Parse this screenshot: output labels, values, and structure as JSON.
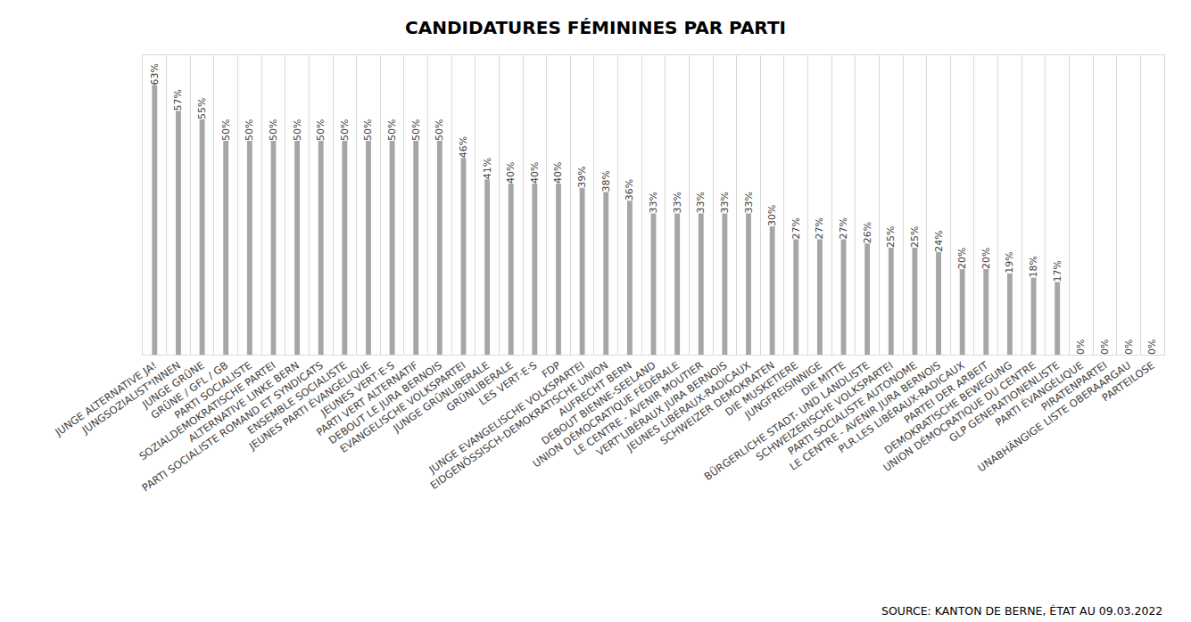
{
  "chart_data": {
    "type": "bar",
    "title": "CANDIDATURES FÉMININES PAR PARTI",
    "annotation": "SOURCE: KANTON DE BERNE, ÉTAT AU 09.03.2022",
    "categories": [
      "JUNGE ALTERNATIVE JA!",
      "JUNGSOZIALIST*INNEN",
      "JUNGE GRÜNE",
      "GRÜNE / GFL / GB",
      "PARTI SOCIALISTE",
      "SOZIALDEMOKRATISCHE PARTEI",
      "ALTERNATIVE LINKE BERN",
      "PARTI SOCIALISTE ROMAND ET SYNDICATS",
      "ENSEMBLE SOCIALISTE",
      "JEUNES PARTI ÉVANGÉLIQUE",
      "JEUNES VERT·E·S",
      "PARTI VERT ALTERNATIF",
      "DEBOUT LE JURA BERNOIS",
      "EVANGELISCHE VOLKSPARTEI",
      "JUNGE GRÜNLIBERALE",
      "GRÜNLIBERALE",
      "LES VERT·E·S",
      "FDP",
      "JUNGE EVANGELISCHE VOLKSPARTEI",
      "EIDGENÖSSISCH-DEMOKRATISCHE UNION",
      "AUFRECHT BERN",
      "DEBOUT BIENNE-SEELAND",
      "UNION DÉMOCRATIQUE FÉDÉRALE",
      "LE CENTRE - AVENIR MOUTIER",
      "VERT'LIBÉRAUX JURA BERNOIS",
      "JEUNES LIBÉRAUX-RADICAUX",
      "SCHWEIZER DEMOKRATEN",
      "DIE MUSKETIERE",
      "JUNGFREISINNIGE",
      "DIE MITTE",
      "BÜRGERLICHE STADT- UND LANDLISTE",
      "SCHWEIZERISCHE VOLKSPARTEI",
      "PARTI SOCIALISTE AUTONOME",
      "LE CENTRE - AVENIR JURA BERNOIS",
      "PLR.LES LIBÉRAUX-RADICAUX",
      "PARTEI DER ARBEIT",
      "DEMOKRATISCHE BEWEGUNG",
      "UNION DÉMOCRATIQUE DU CENTRE",
      "GLP GENERATIONENLISTE",
      "PARTI ÉVANGÉLIQUE",
      "PIRATENPARTEI",
      "UNABHÄNGIGE LISTE OBERAARGAU",
      "PARTEILOSE"
    ],
    "values": [
      63,
      57,
      55,
      50,
      50,
      50,
      50,
      50,
      50,
      50,
      50,
      50,
      50,
      46,
      41,
      40,
      40,
      40,
      39,
      38,
      36,
      33,
      33,
      33,
      33,
      33,
      30,
      27,
      27,
      27,
      26,
      25,
      25,
      24,
      20,
      20,
      19,
      18,
      17,
      0,
      0,
      0,
      0
    ],
    "value_labels": [
      "63%",
      "57%",
      "55%",
      "50%",
      "50%",
      "50%",
      "50%",
      "50%",
      "50%",
      "50%",
      "50%",
      "50%",
      "50%",
      "46%",
      "41%",
      "40%",
      "40%",
      "40%",
      "39%",
      "38%",
      "36%",
      "33%",
      "33%",
      "33%",
      "33%",
      "33%",
      "30%",
      "27%",
      "27%",
      "27%",
      "26%",
      "25%",
      "25%",
      "24%",
      "20%",
      "20%",
      "19%",
      "18%",
      "17%",
      "0%",
      "0%",
      "0%",
      "0%"
    ],
    "color": "#a6a6a6",
    "ylim": [
      0,
      70
    ],
    "data_labels": true,
    "tick_labels": "x",
    "grid": true
  }
}
